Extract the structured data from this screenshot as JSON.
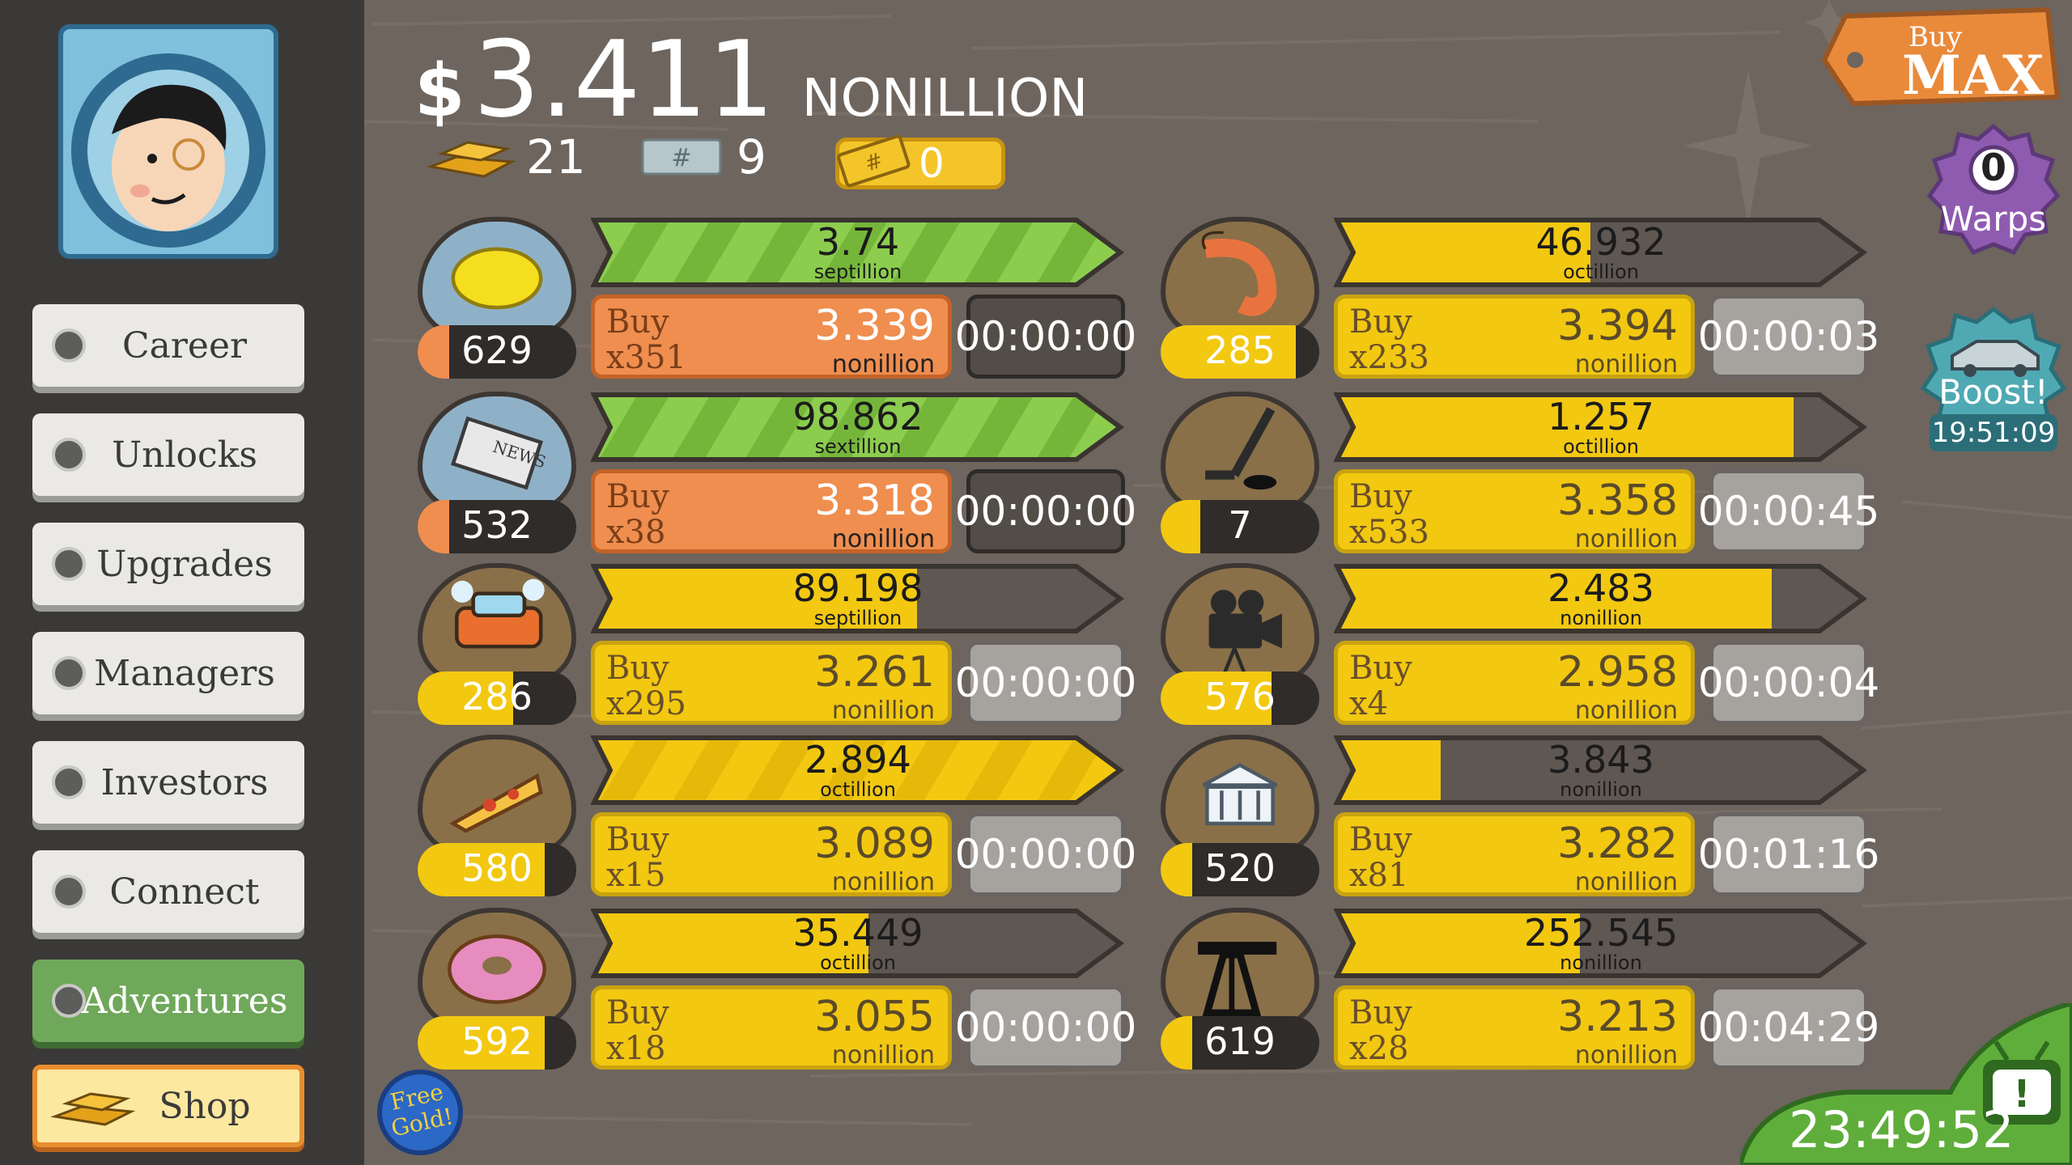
{
  "header": {
    "currency_symbol": "$",
    "money_amount": "3.411",
    "money_unit": "NONILLION",
    "gold_bars": "21",
    "mega_tickets": "9",
    "ticket_value": "0"
  },
  "sidebar": {
    "items": [
      {
        "label": "Career"
      },
      {
        "label": "Unlocks"
      },
      {
        "label": "Upgrades"
      },
      {
        "label": "Managers"
      },
      {
        "label": "Investors"
      },
      {
        "label": "Connect"
      },
      {
        "label": "Adventures"
      },
      {
        "label": "Shop"
      }
    ]
  },
  "businesses": [
    {
      "icon": "lemon-icon",
      "count": "629",
      "count_fill": 0.2,
      "progress_value": "3.74",
      "progress_unit": "septillion",
      "progress_fill": 1.0,
      "progress_style": "striped",
      "buy_label": "Buy",
      "buy_qty": "x351",
      "cost": "3.339",
      "cost_unit": "nonillion",
      "buy_style": "orange",
      "timer": "00:00:00",
      "timer_style": "dark"
    },
    {
      "icon": "newspaper-icon",
      "count": "532",
      "count_fill": 0.2,
      "progress_value": "98.862",
      "progress_unit": "sextillion",
      "progress_fill": 1.0,
      "progress_style": "striped",
      "buy_label": "Buy",
      "buy_qty": "x38",
      "cost": "3.318",
      "cost_unit": "nonillion",
      "buy_style": "orange",
      "timer": "00:00:00",
      "timer_style": "dark"
    },
    {
      "icon": "car-wash-icon",
      "count": "286",
      "count_fill": 0.6,
      "progress_value": "89.198",
      "progress_unit": "septillion",
      "progress_fill": 0.61,
      "progress_style": "solid",
      "buy_label": "Buy",
      "buy_qty": "x295",
      "cost": "3.261",
      "cost_unit": "nonillion",
      "buy_style": "yellow",
      "timer": "00:00:00",
      "timer_style": "light"
    },
    {
      "icon": "pizza-icon",
      "count": "580",
      "count_fill": 0.8,
      "progress_value": "2.894",
      "progress_unit": "octillion",
      "progress_fill": 1.0,
      "progress_style": "yellow-striped",
      "buy_label": "Buy",
      "buy_qty": "x15",
      "cost": "3.089",
      "cost_unit": "nonillion",
      "buy_style": "yellow",
      "timer": "00:00:00",
      "timer_style": "light"
    },
    {
      "icon": "donut-icon",
      "count": "592",
      "count_fill": 0.8,
      "progress_value": "35.449",
      "progress_unit": "octillion",
      "progress_fill": 0.52,
      "progress_style": "solid",
      "buy_label": "Buy",
      "buy_qty": "x18",
      "cost": "3.055",
      "cost_unit": "nonillion",
      "buy_style": "yellow",
      "timer": "00:00:00",
      "timer_style": "light"
    },
    {
      "icon": "shrimp-icon",
      "count": "285",
      "count_fill": 0.85,
      "progress_value": "46.932",
      "progress_unit": "octillion",
      "progress_fill": 0.48,
      "progress_style": "solid",
      "buy_label": "Buy",
      "buy_qty": "x233",
      "cost": "3.394",
      "cost_unit": "nonillion",
      "buy_style": "yellow",
      "timer": "00:00:03",
      "timer_style": "light"
    },
    {
      "icon": "hockey-icon",
      "count": "7",
      "count_fill": 0.25,
      "progress_value": "1.257",
      "progress_unit": "octillion",
      "progress_fill": 0.86,
      "progress_style": "solid",
      "buy_label": "Buy",
      "buy_qty": "x533",
      "cost": "3.358",
      "cost_unit": "nonillion",
      "buy_style": "yellow",
      "timer": "00:00:45",
      "timer_style": "light"
    },
    {
      "icon": "movie-camera-icon",
      "count": "576",
      "count_fill": 0.7,
      "progress_value": "2.483",
      "progress_unit": "nonillion",
      "progress_fill": 0.82,
      "progress_style": "solid",
      "buy_label": "Buy",
      "buy_qty": "x4",
      "cost": "2.958",
      "cost_unit": "nonillion",
      "buy_style": "yellow",
      "timer": "00:00:04",
      "timer_style": "light"
    },
    {
      "icon": "bank-icon",
      "count": "520",
      "count_fill": 0.2,
      "progress_value": "3.843",
      "progress_unit": "nonillion",
      "progress_fill": 0.2,
      "progress_style": "solid",
      "buy_label": "Buy",
      "buy_qty": "x81",
      "cost": "3.282",
      "cost_unit": "nonillion",
      "buy_style": "yellow",
      "timer": "00:01:16",
      "timer_style": "light"
    },
    {
      "icon": "oil-rig-icon",
      "count": "619",
      "count_fill": 0.2,
      "progress_value": "252.545",
      "progress_unit": "nonillion",
      "progress_fill": 0.46,
      "progress_style": "solid",
      "buy_label": "Buy",
      "buy_qty": "x28",
      "cost": "3.213",
      "cost_unit": "nonillion",
      "buy_style": "yellow",
      "timer": "00:04:29",
      "timer_style": "light"
    }
  ],
  "buy_max": {
    "line1": "Buy",
    "line2": "MAX"
  },
  "warps": {
    "count": "0",
    "label": "Warps"
  },
  "boost": {
    "label": "Boost!",
    "timer": "19:51:09"
  },
  "free_gold": {
    "label": "Free Gold!"
  },
  "tv": {
    "timer": "23:49:52"
  },
  "colors": {
    "orange": "#ef8e4f",
    "yellow": "#f2c811",
    "green": "#8ccd4e",
    "purple": "#8f5bb0",
    "teal": "#4fa9b3"
  }
}
